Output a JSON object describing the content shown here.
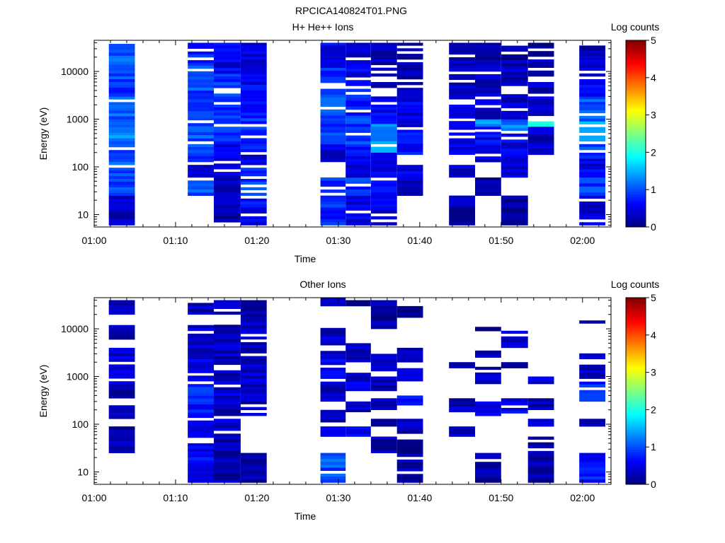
{
  "figure": {
    "title": "RPCICA140824T01.PNG"
  },
  "colors": {
    "axis": "#000000",
    "background": "#ffffff"
  },
  "colorbar": {
    "label": "Log counts",
    "min": 0,
    "max": 5,
    "ticks": [
      "0",
      "1",
      "2",
      "3",
      "4",
      "5"
    ]
  },
  "chart_data": [
    {
      "type": "heatmap",
      "title": "H+ He++ Ions",
      "xlabel": "Time",
      "ylabel": "Energy (eV)",
      "xticks": [
        "01:00",
        "01:10",
        "01:20",
        "01:30",
        "01:40",
        "01:50",
        "02:00"
      ],
      "yticks": [
        "10",
        "100",
        "1000",
        "10000"
      ],
      "x_range_min": [
        0,
        63.5
      ],
      "y_range_ev": [
        5.5,
        45000
      ],
      "y_scale": "log",
      "columns": [
        {
          "t": [
            1.8,
            5.0
          ],
          "bands": [
            [
              6,
              25,
              0.3
            ],
            [
              25,
              110,
              0.9
            ],
            [
              110,
              400,
              1.0
            ],
            [
              400,
              1000,
              1.3
            ],
            [
              1000,
              3000,
              1.1
            ],
            [
              3000,
              12000,
              0.9
            ],
            [
              12000,
              38000,
              1.1
            ]
          ]
        },
        {
          "t": [
            11.5,
            14.7
          ],
          "bands": [
            [
              25,
              60,
              1.0
            ],
            [
              60,
              110,
              0.4
            ],
            [
              110,
              400,
              0.9
            ],
            [
              400,
              1100,
              1.0
            ],
            [
              1100,
              4000,
              0.9
            ],
            [
              4000,
              15000,
              1.0
            ],
            [
              15000,
              40000,
              0.7
            ]
          ]
        },
        {
          "t": [
            14.7,
            18.0
          ],
          "bands": [
            [
              6,
              25,
              0.2
            ],
            [
              25,
              60,
              0.3
            ],
            [
              60,
              300,
              0.5
            ],
            [
              300,
              800,
              0.9
            ],
            [
              800,
              3000,
              0.8
            ],
            [
              3000,
              9000,
              0.9
            ],
            [
              9000,
              40000,
              0.5
            ]
          ]
        },
        {
          "t": [
            18.0,
            21.2
          ],
          "bands": [
            [
              6,
              25,
              0.6
            ],
            [
              25,
              110,
              0.9
            ],
            [
              110,
              180,
              0.5
            ],
            [
              180,
              400,
              0.9
            ],
            [
              400,
              1200,
              0.8
            ],
            [
              1200,
              9000,
              0.6
            ],
            [
              9000,
              40000,
              0.5
            ]
          ]
        },
        {
          "t": [
            27.8,
            30.9
          ],
          "bands": [
            [
              6,
              25,
              0.8
            ],
            [
              25,
              60,
              0.9
            ],
            [
              110,
              300,
              0.5
            ],
            [
              300,
              1200,
              0.9
            ],
            [
              1200,
              5000,
              1.0
            ],
            [
              5000,
              12000,
              0.8
            ],
            [
              12000,
              40000,
              0.5
            ]
          ]
        },
        {
          "t": [
            30.9,
            34.0
          ],
          "bands": [
            [
              6,
              25,
              0.5
            ],
            [
              25,
              60,
              0.8
            ],
            [
              60,
              110,
              0.4
            ],
            [
              110,
              300,
              0.6
            ],
            [
              300,
              1200,
              0.9
            ],
            [
              1200,
              5000,
              0.7
            ],
            [
              5000,
              15000,
              0.5
            ],
            [
              15000,
              40000,
              0.3
            ]
          ]
        },
        {
          "t": [
            34.0,
            37.2
          ],
          "bands": [
            [
              6,
              25,
              0.5
            ],
            [
              25,
              60,
              0.8
            ],
            [
              60,
              200,
              0.5
            ],
            [
              200,
              800,
              1.4
            ],
            [
              800,
              3000,
              0.6
            ],
            [
              3000,
              12000,
              0.4
            ],
            [
              12000,
              40000,
              0.3
            ]
          ]
        },
        {
          "t": [
            37.2,
            40.4
          ],
          "bands": [
            [
              25,
              60,
              0.3
            ],
            [
              60,
              110,
              0.5
            ],
            [
              180,
              600,
              0.7
            ],
            [
              600,
              3000,
              0.5
            ],
            [
              3000,
              12000,
              0.3
            ],
            [
              12000,
              40000,
              0.3
            ]
          ]
        },
        {
          "t": [
            43.6,
            46.8
          ],
          "bands": [
            [
              6,
              25,
              0.2
            ],
            [
              60,
              110,
              0.3
            ],
            [
              180,
              300,
              0.5
            ],
            [
              300,
              800,
              0.4
            ],
            [
              800,
              3000,
              0.4
            ],
            [
              3000,
              15000,
              0.3
            ],
            [
              15000,
              40000,
              0.2
            ]
          ]
        },
        {
          "t": [
            46.8,
            50.0
          ],
          "bands": [
            [
              25,
              60,
              0.2
            ],
            [
              110,
              250,
              0.4
            ],
            [
              250,
              700,
              0.6
            ],
            [
              700,
              1000,
              1.4
            ],
            [
              1000,
              3000,
              0.4
            ],
            [
              3000,
              15000,
              0.3
            ],
            [
              15000,
              40000,
              0.2
            ]
          ]
        },
        {
          "t": [
            50.0,
            53.3
          ],
          "bands": [
            [
              6,
              25,
              0.2
            ],
            [
              60,
              180,
              0.4
            ],
            [
              180,
              500,
              0.5
            ],
            [
              500,
              1000,
              1.2
            ],
            [
              1000,
              5000,
              0.4
            ],
            [
              5000,
              15000,
              0.3
            ],
            [
              15000,
              40000,
              0.2
            ]
          ]
        },
        {
          "t": [
            53.3,
            56.5
          ],
          "bands": [
            [
              180,
              500,
              0.3
            ],
            [
              500,
              700,
              0.4
            ],
            [
              700,
              900,
              2.2
            ],
            [
              900,
              3000,
              0.4
            ],
            [
              3000,
              12000,
              0.3
            ],
            [
              12000,
              40000,
              0.2
            ]
          ]
        },
        {
          "t": [
            59.6,
            62.8
          ],
          "bands": [
            [
              6,
              25,
              0.4
            ],
            [
              25,
              60,
              0.9
            ],
            [
              60,
              150,
              0.5
            ],
            [
              150,
              300,
              0.9
            ],
            [
              300,
              900,
              1.5
            ],
            [
              900,
              3000,
              1.0
            ],
            [
              3000,
              12000,
              0.5
            ],
            [
              12000,
              40000,
              0.3
            ]
          ]
        }
      ]
    },
    {
      "type": "heatmap",
      "title": "Other Ions",
      "xlabel": "Time",
      "ylabel": "Energy (eV)",
      "xticks": [
        "01:00",
        "01:10",
        "01:20",
        "01:30",
        "01:40",
        "01:50",
        "02:00"
      ],
      "yticks": [
        "10",
        "100",
        "1000",
        "10000"
      ],
      "x_range_min": [
        0,
        63.5
      ],
      "y_range_ev": [
        5.5,
        45000
      ],
      "y_scale": "log",
      "columns": [
        {
          "t": [
            1.8,
            5.0
          ],
          "bands": [
            [
              25,
              90,
              0.2
            ],
            [
              130,
              250,
              0.4
            ],
            [
              350,
              1200,
              0.3
            ],
            [
              1200,
              4000,
              0.4
            ],
            [
              6000,
              12000,
              0.2
            ],
            [
              20000,
              40000,
              0.2
            ]
          ]
        },
        {
          "t": [
            11.5,
            14.7
          ],
          "bands": [
            [
              6,
              60,
              0.6
            ],
            [
              60,
              120,
              0.5
            ],
            [
              120,
              300,
              0.7
            ],
            [
              300,
              800,
              0.8
            ],
            [
              800,
              3000,
              0.5
            ],
            [
              3000,
              12000,
              0.4
            ],
            [
              20000,
              35000,
              0.3
            ]
          ]
        },
        {
          "t": [
            14.7,
            18.0
          ],
          "bands": [
            [
              6,
              55,
              0.2
            ],
            [
              55,
              130,
              0.4
            ],
            [
              150,
              300,
              0.3
            ],
            [
              300,
              900,
              0.4
            ],
            [
              900,
              4000,
              0.3
            ],
            [
              4000,
              14000,
              0.3
            ],
            [
              20000,
              40000,
              0.2
            ]
          ]
        },
        {
          "t": [
            18.0,
            21.2
          ],
          "bands": [
            [
              6,
              25,
              0.2
            ],
            [
              150,
              350,
              0.3
            ],
            [
              350,
              1200,
              0.4
            ],
            [
              1200,
              9000,
              0.3
            ],
            [
              9000,
              40000,
              0.3
            ]
          ]
        },
        {
          "t": [
            27.8,
            30.9
          ],
          "bands": [
            [
              6,
              25,
              1.0
            ],
            [
              55,
              90,
              0.4
            ],
            [
              110,
              200,
              0.3
            ],
            [
              300,
              900,
              0.3
            ],
            [
              900,
              3000,
              0.5
            ],
            [
              3000,
              12000,
              0.3
            ],
            [
              30000,
              45000,
              0.3
            ]
          ]
        },
        {
          "t": [
            30.9,
            34.0
          ],
          "bands": [
            [
              55,
              90,
              0.6
            ],
            [
              180,
              300,
              0.3
            ],
            [
              500,
              1200,
              0.4
            ],
            [
              2000,
              5000,
              0.3
            ],
            [
              30000,
              40000,
              0.2
            ]
          ]
        },
        {
          "t": [
            34.0,
            37.2
          ],
          "bands": [
            [
              25,
              55,
              0.2
            ],
            [
              90,
              130,
              0.3
            ],
            [
              200,
              350,
              0.3
            ],
            [
              500,
              1000,
              0.3
            ],
            [
              1300,
              3000,
              0.3
            ],
            [
              10000,
              40000,
              0.2
            ]
          ]
        },
        {
          "t": [
            37.2,
            40.4
          ],
          "bands": [
            [
              6,
              55,
              0.2
            ],
            [
              55,
              130,
              0.3
            ],
            [
              250,
              400,
              0.8
            ],
            [
              800,
              1500,
              0.3
            ],
            [
              2000,
              4000,
              0.3
            ],
            [
              15000,
              30000,
              0.2
            ]
          ]
        },
        {
          "t": [
            43.6,
            46.8
          ],
          "bands": [
            [
              55,
              90,
              0.2
            ],
            [
              180,
              350,
              0.3
            ],
            [
              1500,
              2000,
              0.2
            ]
          ]
        },
        {
          "t": [
            46.8,
            50.0
          ],
          "bands": [
            [
              6,
              25,
              0.2
            ],
            [
              150,
              300,
              0.4
            ],
            [
              700,
              1600,
              0.3
            ],
            [
              2500,
              3500,
              0.2
            ],
            [
              9000,
              11000,
              0.2
            ]
          ]
        },
        {
          "t": [
            50.0,
            53.3
          ],
          "bands": [
            [
              170,
              220,
              0.5
            ],
            [
              250,
              350,
              0.4
            ],
            [
              1500,
              2000,
              0.2
            ],
            [
              4000,
              12000,
              0.3
            ]
          ]
        },
        {
          "t": [
            53.3,
            56.5
          ],
          "bands": [
            [
              6,
              55,
              0.2
            ],
            [
              90,
              130,
              0.3
            ],
            [
              200,
              350,
              0.3
            ],
            [
              700,
              1000,
              0.4
            ]
          ]
        },
        {
          "t": [
            59.6,
            62.8
          ],
          "bands": [
            [
              6,
              25,
              0.7
            ],
            [
              90,
              130,
              0.3
            ],
            [
              300,
              900,
              0.8
            ],
            [
              900,
              3500,
              0.4
            ],
            [
              13000,
              15000,
              0.2
            ]
          ]
        }
      ]
    }
  ]
}
